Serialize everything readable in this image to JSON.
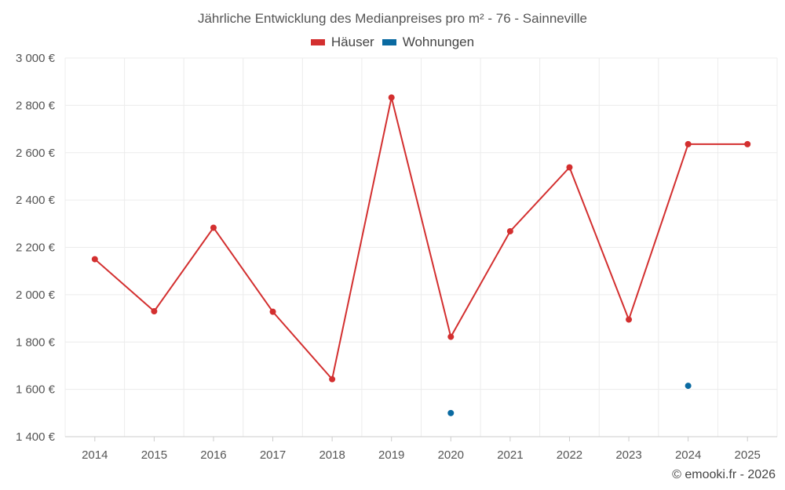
{
  "chart_data": {
    "type": "line",
    "title": "Jährliche Entwicklung des Medianpreises pro m² - 76 - Sainneville",
    "categories": [
      "2014",
      "2015",
      "2016",
      "2017",
      "2018",
      "2019",
      "2020",
      "2021",
      "2022",
      "2023",
      "2024",
      "2025"
    ],
    "series": [
      {
        "name": "Häuser",
        "color": "#d32f2f",
        "values": [
          2150,
          1930,
          2283,
          1928,
          1643,
          2833,
          1822,
          2268,
          2538,
          1895,
          2636,
          2636
        ],
        "mode": "line+markers"
      },
      {
        "name": "Wohnungen",
        "color": "#0a6aa1",
        "values": [
          null,
          null,
          null,
          null,
          null,
          null,
          1500,
          null,
          null,
          null,
          1615,
          null
        ],
        "mode": "markers"
      }
    ],
    "yticks": [
      1400,
      1600,
      1800,
      2000,
      2200,
      2400,
      2600,
      2800,
      3000
    ],
    "ytick_labels": [
      "1 400 €",
      "1 600 €",
      "1 800 €",
      "2 000 €",
      "2 200 €",
      "2 400 €",
      "2 600 €",
      "2 800 €",
      "3 000 €"
    ],
    "ylim": [
      1400,
      3000
    ],
    "grid": true,
    "legend_position": "top-center",
    "xlabel": "",
    "ylabel": ""
  },
  "credit": "© emooki.fr - 2026"
}
